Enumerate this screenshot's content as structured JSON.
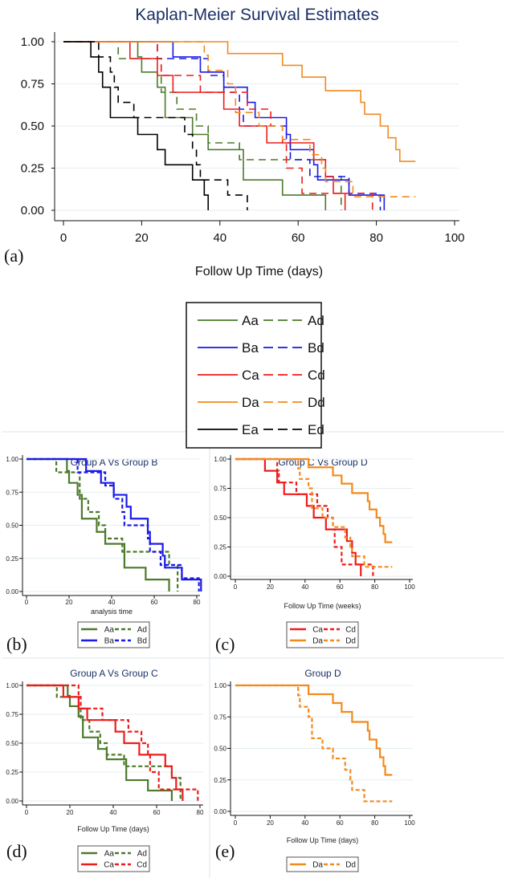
{
  "colors": {
    "A": "#4c7a2a",
    "B": "#1a1ae6",
    "C": "#ee1c1c",
    "D": "#f28a1e",
    "E": "#000000",
    "title": "#1a2f66"
  },
  "series": {
    "Aa": {
      "group": "A",
      "style": "solid",
      "end": 67,
      "steps": [
        [
          0,
          1
        ],
        [
          19,
          0.91
        ],
        [
          20,
          0.82
        ],
        [
          24,
          0.73
        ],
        [
          26,
          0.55
        ],
        [
          33,
          0.45
        ],
        [
          37,
          0.36
        ],
        [
          46,
          0.18
        ],
        [
          56,
          0.09
        ],
        [
          67,
          0
        ]
      ]
    },
    "Ad": {
      "group": "A",
      "style": "dashed",
      "end": 71,
      "steps": [
        [
          0,
          1
        ],
        [
          14,
          0.9
        ],
        [
          25,
          0.7
        ],
        [
          29,
          0.6
        ],
        [
          34,
          0.5
        ],
        [
          37,
          0.4
        ],
        [
          45,
          0.3
        ],
        [
          67,
          0.2
        ],
        [
          71,
          0.1
        ],
        [
          71,
          0
        ]
      ]
    },
    "Ba": {
      "group": "B",
      "style": "solid",
      "end": 82,
      "steps": [
        [
          0,
          1
        ],
        [
          28,
          0.91
        ],
        [
          35,
          0.82
        ],
        [
          41,
          0.73
        ],
        [
          47,
          0.64
        ],
        [
          49,
          0.55
        ],
        [
          57,
          0.45
        ],
        [
          58,
          0.36
        ],
        [
          64,
          0.27
        ],
        [
          65,
          0.18
        ],
        [
          73,
          0.09
        ],
        [
          82,
          0
        ]
      ]
    },
    "Bd": {
      "group": "B",
      "style": "dashed",
      "end": 81,
      "steps": [
        [
          0,
          1
        ],
        [
          24,
          0.9
        ],
        [
          37,
          0.8
        ],
        [
          41,
          0.7
        ],
        [
          45,
          0.6
        ],
        [
          46,
          0.5
        ],
        [
          57,
          0.4
        ],
        [
          58,
          0.3
        ],
        [
          63,
          0.2
        ],
        [
          73,
          0.1
        ],
        [
          81,
          0
        ]
      ]
    },
    "Ca": {
      "group": "C",
      "style": "solid",
      "end": 72,
      "steps": [
        [
          0,
          1
        ],
        [
          17,
          0.9
        ],
        [
          24,
          0.8
        ],
        [
          28,
          0.7
        ],
        [
          41,
          0.6
        ],
        [
          45,
          0.5
        ],
        [
          52,
          0.4
        ],
        [
          64,
          0.3
        ],
        [
          67,
          0.2
        ],
        [
          69,
          0.1
        ],
        [
          72,
          0
        ]
      ]
    },
    "Cd": {
      "group": "C",
      "style": "dashed",
      "end": 79,
      "steps": [
        [
          0,
          1
        ],
        [
          24,
          0.9
        ],
        [
          25,
          0.8
        ],
        [
          35,
          0.7
        ],
        [
          47,
          0.6
        ],
        [
          53,
          0.5
        ],
        [
          56,
          0.4
        ],
        [
          57,
          0.25
        ],
        [
          61,
          0.1
        ],
        [
          79,
          0
        ]
      ]
    },
    "Da": {
      "group": "D",
      "style": "solid",
      "end": 90,
      "steps": [
        [
          0,
          1
        ],
        [
          42,
          0.93
        ],
        [
          56,
          0.86
        ],
        [
          61,
          0.79
        ],
        [
          67,
          0.71
        ],
        [
          76,
          0.64
        ],
        [
          77,
          0.57
        ],
        [
          81,
          0.5
        ],
        [
          83,
          0.43
        ],
        [
          85,
          0.36
        ],
        [
          86,
          0.29
        ]
      ]
    },
    "Dd": {
      "group": "D",
      "style": "dashed",
      "end": 90,
      "steps": [
        [
          0,
          1
        ],
        [
          36,
          0.92
        ],
        [
          37,
          0.83
        ],
        [
          42,
          0.75
        ],
        [
          44,
          0.58
        ],
        [
          50,
          0.5
        ],
        [
          56,
          0.42
        ],
        [
          63,
          0.33
        ],
        [
          66,
          0.25
        ],
        [
          67,
          0.17
        ],
        [
          74,
          0.08
        ]
      ]
    },
    "Ea": {
      "group": "E",
      "style": "solid",
      "end": 37,
      "steps": [
        [
          0,
          1
        ],
        [
          7,
          0.91
        ],
        [
          9,
          0.82
        ],
        [
          10,
          0.73
        ],
        [
          12,
          0.55
        ],
        [
          19,
          0.45
        ],
        [
          24,
          0.36
        ],
        [
          26,
          0.27
        ],
        [
          33,
          0.18
        ],
        [
          36,
          0.09
        ],
        [
          37,
          0
        ]
      ]
    },
    "Ed": {
      "group": "E",
      "style": "dashed",
      "end": 47,
      "steps": [
        [
          0,
          1
        ],
        [
          9,
          0.91
        ],
        [
          12,
          0.82
        ],
        [
          13,
          0.73
        ],
        [
          14,
          0.64
        ],
        [
          18,
          0.55
        ],
        [
          31,
          0.45
        ],
        [
          33,
          0.36
        ],
        [
          34,
          0.27
        ],
        [
          35,
          0.18
        ],
        [
          42,
          0.09
        ],
        [
          47,
          0
        ]
      ]
    }
  },
  "chart_data": [
    {
      "type": "line",
      "panel": "(a)",
      "title": "Kaplan-Meier Survival Estimates",
      "xlabel": "Follow Up Time (days)",
      "ylabel": "",
      "xlim": [
        0,
        100
      ],
      "ylim": [
        0,
        1
      ],
      "xticks": [
        "0",
        "20",
        "40",
        "60",
        "80",
        "100"
      ],
      "yticks": [
        "0.00",
        "0.25",
        "0.50",
        "0.75",
        "1.00"
      ],
      "series": [
        "Aa",
        "Ad",
        "Ba",
        "Bd",
        "Ca",
        "Cd",
        "Da",
        "Dd",
        "Ea",
        "Ed"
      ],
      "legend": [
        "Aa",
        "Ad",
        "Ba",
        "Bd",
        "Ca",
        "Cd",
        "Da",
        "Dd",
        "Ea",
        "Ed"
      ],
      "legend_placement": "below"
    },
    {
      "type": "line",
      "panel": "(b)",
      "title": "Group A Vs Group B",
      "xlabel": "analysis time",
      "xlim": [
        0,
        80
      ],
      "ylim": [
        0,
        1
      ],
      "xticks": [
        "0",
        "20",
        "40",
        "60",
        "80"
      ],
      "yticks": [
        "0.00",
        "0.25",
        "0.50",
        "0.75",
        "1.00"
      ],
      "series": [
        "Aa",
        "Ad",
        "Ba",
        "Bd"
      ],
      "legend": [
        "Aa",
        "Ad",
        "Ba",
        "Bd"
      ],
      "legend_placement": "below"
    },
    {
      "type": "line",
      "panel": "(c)",
      "title": "Group C Vs Group D",
      "xlabel": "Follow Up Time (weeks)",
      "xlim": [
        0,
        100
      ],
      "ylim": [
        0,
        1
      ],
      "xticks": [
        "0",
        "20",
        "40",
        "60",
        "80",
        "100"
      ],
      "yticks": [
        "0.00",
        "0.25",
        "0.50",
        "0.75",
        "1.00"
      ],
      "series": [
        "Ca",
        "Cd",
        "Da",
        "Dd"
      ],
      "legend": [
        "Ca",
        "Cd",
        "Da",
        "Dd"
      ],
      "legend_placement": "below"
    },
    {
      "type": "line",
      "panel": "(d)",
      "title": "Group A Vs Group C",
      "xlabel": "Follow Up Time (days)",
      "xlim": [
        0,
        80
      ],
      "ylim": [
        0,
        1
      ],
      "xticks": [
        "0",
        "20",
        "40",
        "60",
        "80"
      ],
      "yticks": [
        "0.00",
        "0.25",
        "0.50",
        "0.75",
        "1.00"
      ],
      "series": [
        "Aa",
        "Ad",
        "Ca",
        "Cd"
      ],
      "legend": [
        "Aa",
        "Ad",
        "Ca",
        "Cd"
      ],
      "legend_placement": "below"
    },
    {
      "type": "line",
      "panel": "(e)",
      "title": "Group D",
      "xlabel": "Follow Up Time (days)",
      "xlim": [
        0,
        100
      ],
      "ylim": [
        0,
        1
      ],
      "xticks": [
        "0",
        "20",
        "40",
        "60",
        "80",
        "100"
      ],
      "yticks": [
        "0.00",
        "0.25",
        "0.50",
        "0.75",
        "1.00"
      ],
      "series": [
        "Da",
        "Dd"
      ],
      "legend": [
        "Da",
        "Dd"
      ],
      "legend_placement": "below"
    }
  ]
}
